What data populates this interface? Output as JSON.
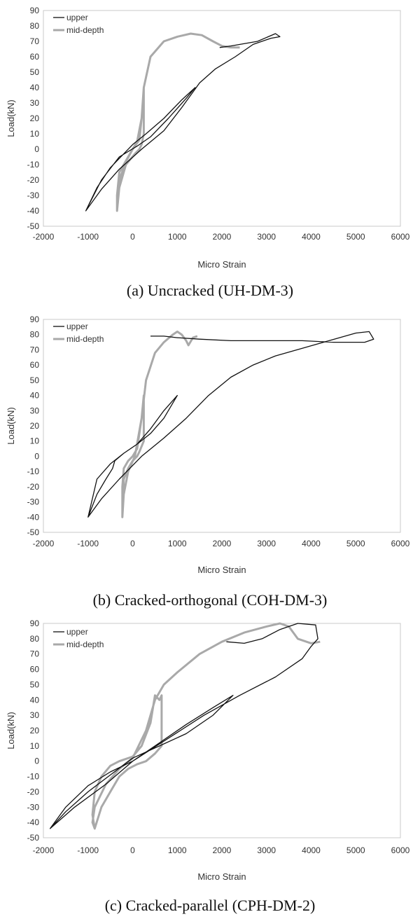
{
  "figure": {
    "captions": [
      "(a)  Uncracked  (UH-DM-3)",
      "(b)  Cracked-orthogonal  (COH-DM-3)",
      "(c)  Cracked-parallel  (CPH-DM-2)"
    ]
  },
  "chart_data": [
    {
      "type": "line",
      "title": "",
      "xlabel": "Micro Strain",
      "ylabel": "Load(kN)",
      "xlim": [
        -2000,
        6000
      ],
      "ylim": [
        -50,
        90
      ],
      "xticks": [
        "-2000",
        "-1000",
        "0",
        "1000",
        "2000",
        "3000",
        "4000",
        "5000",
        "6000"
      ],
      "yticks": [
        "90",
        "80",
        "70",
        "60",
        "50",
        "40",
        "30",
        "20",
        "10",
        "0",
        "-10",
        "-20",
        "-30",
        "-40",
        "-50"
      ],
      "grid": false,
      "legend_position": "top-left",
      "series": [
        {
          "name": "upper",
          "color": "#111111",
          "x": [
            -1050,
            -800,
            -500,
            -200,
            0,
            300,
            700,
            1100,
            1400,
            1200,
            800,
            400,
            100,
            -300,
            -700,
            -1050,
            -700,
            -300,
            200,
            700,
            1100,
            1500,
            1850,
            2300,
            2700,
            3100,
            3300,
            3200,
            2800,
            2200,
            1950
          ],
          "y": [
            -40,
            -25,
            -12,
            -3,
            3,
            10,
            20,
            32,
            40,
            33,
            20,
            8,
            2,
            -5,
            -20,
            -40,
            -26,
            -13,
            0,
            12,
            27,
            43,
            52,
            60,
            68,
            72,
            73,
            75,
            70,
            67,
            66
          ]
        },
        {
          "name": "mid-depth",
          "color": "#a9a9a9",
          "x": [
            -350,
            -300,
            -150,
            0,
            150,
            200,
            250,
            250,
            200,
            150,
            50,
            -150,
            -300,
            -350,
            -350,
            -300,
            -100,
            100,
            200,
            250,
            400,
            700,
            1000,
            1300,
            1550,
            1800,
            2000,
            2200,
            2400
          ],
          "y": [
            -40,
            -20,
            -8,
            0,
            6,
            20,
            40,
            10,
            3,
            0,
            -3,
            -10,
            -25,
            -40,
            -30,
            -15,
            -5,
            5,
            20,
            40,
            60,
            70,
            73,
            75,
            74,
            70,
            67,
            66,
            66
          ]
        }
      ]
    },
    {
      "type": "line",
      "title": "",
      "xlabel": "Micro Strain",
      "ylabel": "Load(kN)",
      "xlim": [
        -2000,
        6000
      ],
      "ylim": [
        -50,
        90
      ],
      "xticks": [
        "-2000",
        "-1000",
        "0",
        "1000",
        "2000",
        "3000",
        "4000",
        "5000",
        "6000"
      ],
      "yticks": [
        "90",
        "80",
        "70",
        "60",
        "50",
        "40",
        "30",
        "20",
        "10",
        "0",
        "-10",
        "-20",
        "-30",
        "-40",
        "-50"
      ],
      "grid": false,
      "legend_position": "top-left",
      "series": [
        {
          "name": "upper",
          "color": "#111111",
          "x": [
            -1000,
            -800,
            -600,
            -450,
            -400,
            -200,
            100,
            400,
            700,
            1000,
            700,
            400,
            100,
            -200,
            -500,
            -800,
            -1000,
            -700,
            -300,
            200,
            700,
            1200,
            1700,
            2200,
            2700,
            3200,
            3800,
            4400,
            5000,
            5300,
            5400,
            5200,
            4500,
            3800,
            3000,
            2200,
            1500,
            1000,
            700,
            400
          ],
          "y": [
            -40,
            -25,
            -15,
            -8,
            -3,
            2,
            8,
            15,
            25,
            40,
            30,
            18,
            8,
            2,
            -5,
            -15,
            -40,
            -28,
            -15,
            0,
            12,
            25,
            40,
            52,
            60,
            66,
            71,
            76,
            81,
            82,
            77,
            75,
            75,
            76,
            76,
            76,
            77,
            78,
            79,
            79
          ]
        },
        {
          "name": "mid-depth",
          "color": "#a9a9a9",
          "x": [
            -230,
            -230,
            -200,
            -100,
            0,
            100,
            150,
            200,
            250,
            250,
            150,
            100,
            0,
            -100,
            -200,
            -230,
            -200,
            -100,
            50,
            200,
            300,
            500,
            700,
            900,
            1000,
            1100,
            1200,
            1250,
            1350,
            1450
          ],
          "y": [
            -40,
            -20,
            -8,
            -3,
            0,
            5,
            15,
            25,
            40,
            10,
            3,
            0,
            -3,
            -8,
            -15,
            -40,
            -25,
            -10,
            0,
            25,
            50,
            68,
            75,
            80,
            82,
            80,
            76,
            73,
            78,
            79
          ]
        }
      ]
    },
    {
      "type": "line",
      "title": "",
      "xlabel": "Micro Strain",
      "ylabel": "Load(kN)",
      "xlim": [
        -2000,
        6000
      ],
      "ylim": [
        -50,
        90
      ],
      "xticks": [
        "-2000",
        "-1000",
        "0",
        "1000",
        "2000",
        "3000",
        "4000",
        "5000",
        "6000"
      ],
      "yticks": [
        "90",
        "80",
        "70",
        "60",
        "50",
        "40",
        "30",
        "20",
        "10",
        "0",
        "-10",
        "-20",
        "-30",
        "-40",
        "-50"
      ],
      "grid": false,
      "legend_position": "top-left",
      "series": [
        {
          "name": "upper",
          "color": "#111111",
          "x": [
            -1850,
            -1500,
            -1000,
            -500,
            0,
            600,
            1200,
            1800,
            2250,
            1800,
            1200,
            600,
            0,
            -500,
            -1000,
            -1500,
            -1850,
            -1300,
            -600,
            0,
            800,
            1600,
            2400,
            3200,
            3800,
            4000,
            4150,
            4100,
            3700,
            3300,
            2900,
            2500,
            2100
          ],
          "y": [
            -44,
            -33,
            -20,
            -9,
            2,
            10,
            18,
            30,
            43,
            35,
            24,
            12,
            0,
            -7,
            -16,
            -30,
            -44,
            -30,
            -15,
            0,
            15,
            30,
            43,
            55,
            67,
            75,
            80,
            89,
            90,
            86,
            80,
            77,
            78
          ]
        },
        {
          "name": "mid-depth",
          "color": "#a9a9a9",
          "x": [
            -850,
            -900,
            -850,
            -700,
            -500,
            -300,
            0,
            200,
            400,
            500,
            600,
            650,
            650,
            500,
            300,
            100,
            -100,
            -300,
            -500,
            -700,
            -850,
            -900,
            -850,
            -600,
            -300,
            0,
            300,
            500,
            700,
            1000,
            1500,
            2000,
            2500,
            3000,
            3300,
            3500,
            3700,
            4000,
            4200
          ],
          "y": [
            -44,
            -35,
            -20,
            -10,
            -3,
            0,
            3,
            10,
            25,
            43,
            40,
            43,
            10,
            5,
            0,
            -2,
            -5,
            -10,
            -20,
            -30,
            -44,
            -40,
            -30,
            -15,
            -5,
            2,
            20,
            40,
            50,
            58,
            70,
            78,
            84,
            88,
            90,
            88,
            80,
            77,
            78
          ]
        }
      ]
    }
  ]
}
